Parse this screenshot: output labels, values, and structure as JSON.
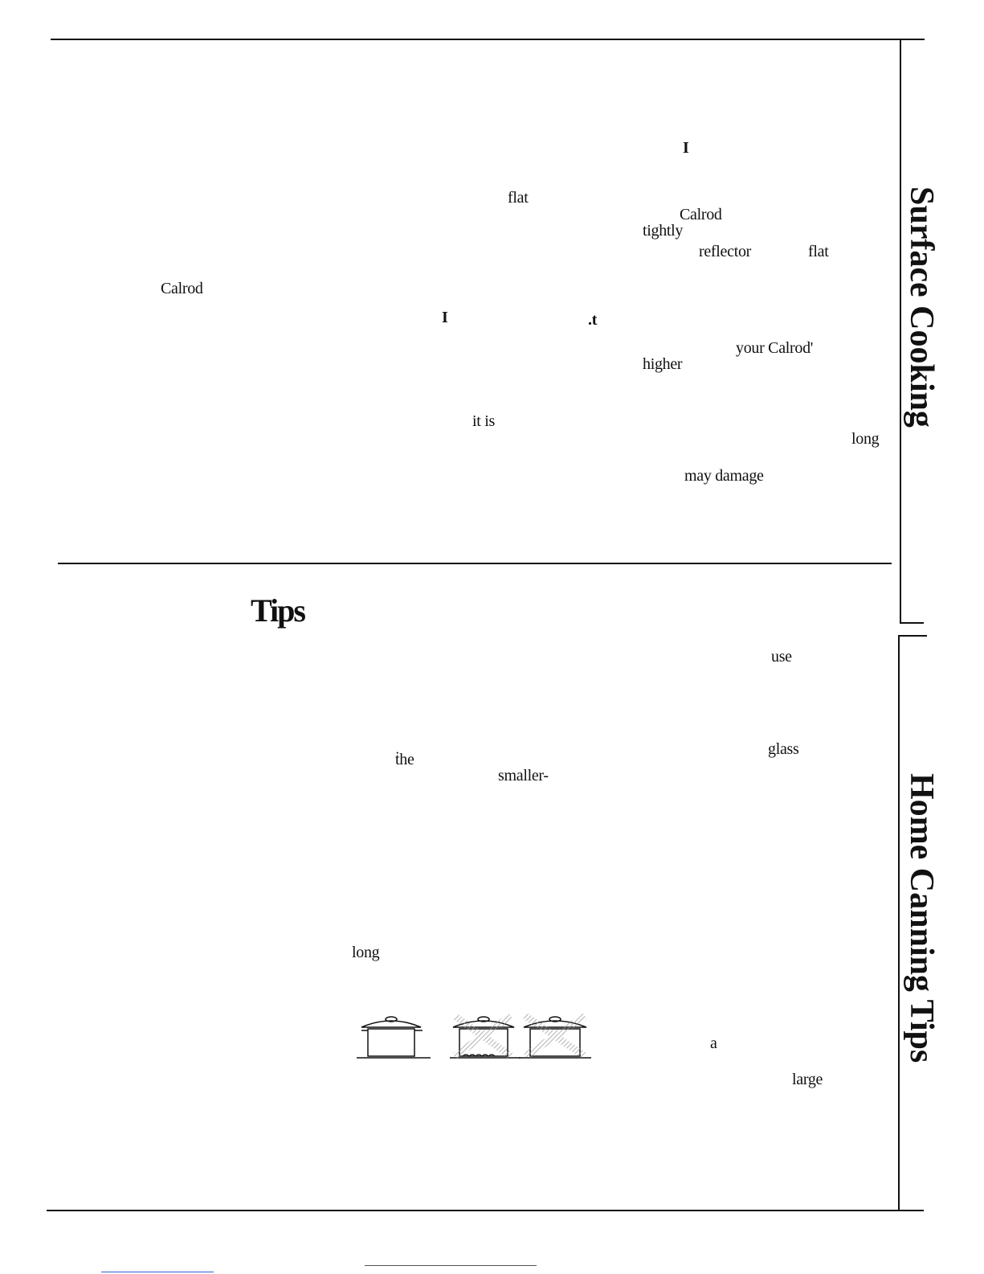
{
  "fragments": {
    "f01": "I",
    "f02": "flat",
    "f03": "Calrod",
    "f04": "tightly",
    "f05": "reflector",
    "f06": "flat",
    "f07": "Calrod",
    "f08": "I",
    "f09": ".t",
    "f10": "your Calrod'",
    "f11": "higher",
    "f12": "it is",
    "f13": "long",
    "f14": "may damage",
    "f15": "use",
    "f16": "glass",
    "f17": "ṫhe",
    "f18": "smaller-",
    "f19": "long",
    "f20": "a",
    "f21": "large"
  },
  "heading": "Tips",
  "side_tabs": {
    "surface_cooking": "Surface Cooking",
    "home_canning": "Home Canning Tips"
  },
  "illustration": {
    "correct_pot": "pot-flat-bottom-correct",
    "wrong_pot_1": "pot-overhanging-wrong",
    "wrong_pot_2": "pot-wide-wrong"
  }
}
